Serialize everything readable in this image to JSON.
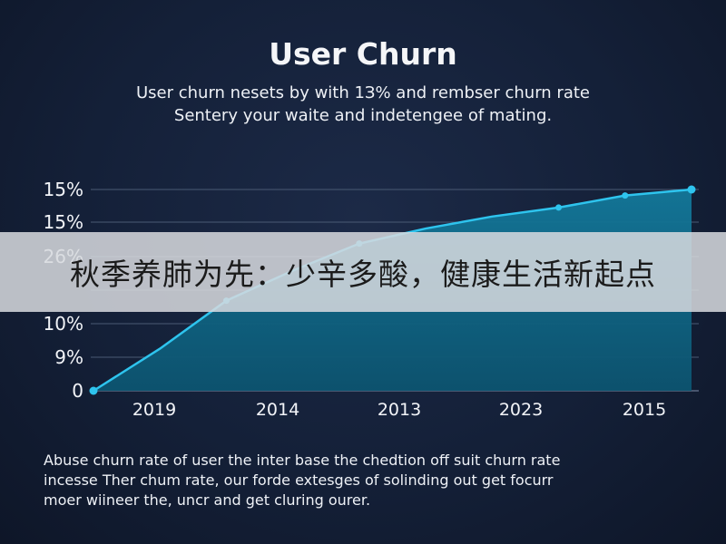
{
  "header": {
    "title": "User Churn",
    "subtitle_line1": "User churn nesets by with 1З% and rembser churn rate",
    "subtitle_line2": "Sentery your waite and indetengee of mating."
  },
  "banner": {
    "text": "秋季养肺为先：少辛多酸，健康生活新起点"
  },
  "footnote": {
    "line1": "Abuse churn rate of user the inter base the chedtion off suit churn rate",
    "line2": "incesse Ther chum rate, our forde extesges of solinding out get focurr",
    "line3": "moer wiineer the, uncr and get cluring ourer."
  },
  "colors": {
    "line": "#2ec4ee",
    "fill": "#0e6a88",
    "grid": "#4a5a74",
    "background": "#162340"
  },
  "chart_data": {
    "type": "area",
    "title": "User Churn",
    "xlabel": "",
    "ylabel": "",
    "y_tick_labels": [
      "0",
      "9%",
      "10%",
      "",
      "26%",
      "15%",
      "15%"
    ],
    "x_tick_labels": [
      "2019",
      "2014",
      "2013",
      "2023",
      "2015"
    ],
    "x": [
      0,
      1,
      2,
      3,
      4,
      5,
      6,
      7,
      8,
      9
    ],
    "values": [
      0,
      1.4,
      3.0,
      4.0,
      4.9,
      5.4,
      5.8,
      6.1,
      6.5,
      6.7
    ],
    "ylim": [
      0,
      6.7
    ],
    "grid": true,
    "legend": "none"
  }
}
